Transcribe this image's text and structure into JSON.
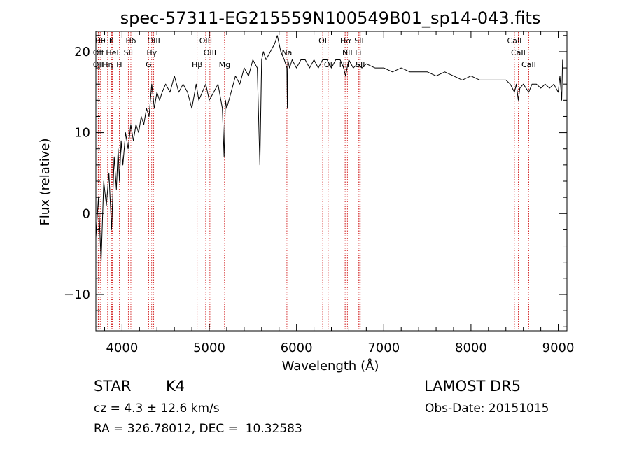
{
  "chart_data": {
    "type": "line",
    "title": "spec-57311-EG215559N100549B01_sp14-043.fits",
    "xlabel": "Wavelength (Å)",
    "ylabel": "Flux (relative)",
    "xlim": [
      3700,
      9100
    ],
    "ylim": [
      -14.5,
      22.5
    ],
    "xticks": [
      4000,
      5000,
      6000,
      7000,
      8000,
      9000
    ],
    "yticks": [
      -10,
      0,
      10,
      20
    ],
    "xtick_labels": [
      "4000",
      "5000",
      "6000",
      "7000",
      "8000",
      "9000"
    ],
    "ytick_labels": [
      "−10",
      "0",
      "10",
      "20"
    ],
    "grid": false,
    "series": [
      {
        "x": [
          3700,
          3730,
          3760,
          3790,
          3820,
          3850,
          3880,
          3910,
          3935,
          3955,
          3970,
          3990,
          4010,
          4040,
          4070,
          4100,
          4130,
          4160,
          4190,
          4220,
          4250,
          4280,
          4310,
          4340,
          4370,
          4400,
          4430,
          4460,
          4500,
          4550,
          4600,
          4650,
          4700,
          4750,
          4800,
          4850,
          4880,
          4920,
          4960,
          5000,
          5050,
          5100,
          5150,
          5170,
          5185,
          5200,
          5250,
          5300,
          5350,
          5400,
          5450,
          5500,
          5550,
          5580,
          5600,
          5620,
          5650,
          5700,
          5750,
          5780,
          5820,
          5860,
          5890,
          5895,
          5900,
          5920,
          5950,
          6000,
          6050,
          6100,
          6150,
          6200,
          6250,
          6300,
          6350,
          6400,
          6450,
          6500,
          6540,
          6563,
          6580,
          6600,
          6650,
          6700,
          6750,
          6800,
          6900,
          7000,
          7100,
          7200,
          7300,
          7400,
          7500,
          7600,
          7700,
          7800,
          7900,
          8000,
          8100,
          8200,
          8300,
          8400,
          8450,
          8498,
          8520,
          8542,
          8560,
          8600,
          8662,
          8700,
          8750,
          8800,
          8850,
          8900,
          8950,
          9000,
          9020,
          9040,
          9050
        ],
        "y": [
          -3,
          2,
          -6,
          4,
          1,
          5,
          -2,
          7,
          3,
          8,
          4,
          9,
          6,
          10,
          8,
          11,
          9,
          11,
          10,
          12,
          11,
          13,
          12,
          16,
          13,
          15,
          14,
          15,
          16,
          15,
          17,
          15,
          16,
          15,
          13,
          16,
          14,
          15,
          16,
          14,
          15,
          16,
          13,
          7,
          14,
          13,
          15,
          17,
          16,
          18,
          17,
          19,
          18,
          6,
          19,
          20,
          19,
          20,
          21,
          22,
          20,
          19,
          18,
          13,
          19,
          18,
          19,
          18,
          19,
          19,
          18,
          19,
          18,
          19,
          19,
          18,
          19,
          19,
          18,
          17,
          18,
          19,
          18,
          18.5,
          18,
          18.5,
          18,
          18,
          17.5,
          18,
          17.5,
          17.5,
          17.5,
          17,
          17.5,
          17,
          16.5,
          17,
          16.5,
          16.5,
          16.5,
          16.5,
          16,
          15,
          16,
          14,
          15.5,
          16,
          15,
          16,
          16,
          15.5,
          16,
          15.5,
          16,
          15,
          17,
          14,
          19
        ]
      }
    ],
    "line_color": "#000000",
    "marker_color": "#cc0000",
    "markers": [
      {
        "x": 3750,
        "label": "Hθ",
        "row": 0
      },
      {
        "x": 3880,
        "label": "K",
        "row": 0
      },
      {
        "x": 4101,
        "label": "Hδ",
        "row": 0
      },
      {
        "x": 4363,
        "label": "OIII",
        "row": 0
      },
      {
        "x": 4959,
        "label": "OIII",
        "row": 0
      },
      {
        "x": 6300,
        "label": "OI",
        "row": 0
      },
      {
        "x": 6563,
        "label": "Hα",
        "row": 0
      },
      {
        "x": 6717,
        "label": "SII",
        "row": 0
      },
      {
        "x": 8498,
        "label": "CaII",
        "row": 0
      },
      {
        "x": 3727,
        "label": "OII",
        "row": 1
      },
      {
        "x": 3889,
        "label": "HeI",
        "row": 1
      },
      {
        "x": 4072,
        "label": "SII",
        "row": 1
      },
      {
        "x": 4340,
        "label": "Hγ",
        "row": 1
      },
      {
        "x": 5007,
        "label": "OIII",
        "row": 1
      },
      {
        "x": 5890,
        "label": "Na",
        "row": 1
      },
      {
        "x": 6583,
        "label": "NII",
        "row": 1
      },
      {
        "x": 6708,
        "label": "Li",
        "row": 1
      },
      {
        "x": 8542,
        "label": "CaII",
        "row": 1
      },
      {
        "x": 3727,
        "label": "OII",
        "row": 2
      },
      {
        "x": 3835,
        "label": "Hη",
        "row": 2
      },
      {
        "x": 3968,
        "label": "H",
        "row": 2
      },
      {
        "x": 4305,
        "label": "G",
        "row": 2
      },
      {
        "x": 4861,
        "label": "Hβ",
        "row": 2
      },
      {
        "x": 5175,
        "label": "Mg",
        "row": 2
      },
      {
        "x": 6363,
        "label": "OI",
        "row": 2
      },
      {
        "x": 6548,
        "label": "NII",
        "row": 2
      },
      {
        "x": 6731,
        "label": "SII",
        "row": 2
      },
      {
        "x": 8662,
        "label": "CaII",
        "row": 2
      }
    ]
  },
  "info": {
    "object_type": "STAR",
    "subclass": "K4",
    "survey": "LAMOST DR5",
    "redshift": "cz = 4.3 ± 12.6 km/s",
    "obs_date": "Obs-Date: 20151015",
    "coords": "RA = 326.78012, DEC =  10.32583"
  }
}
